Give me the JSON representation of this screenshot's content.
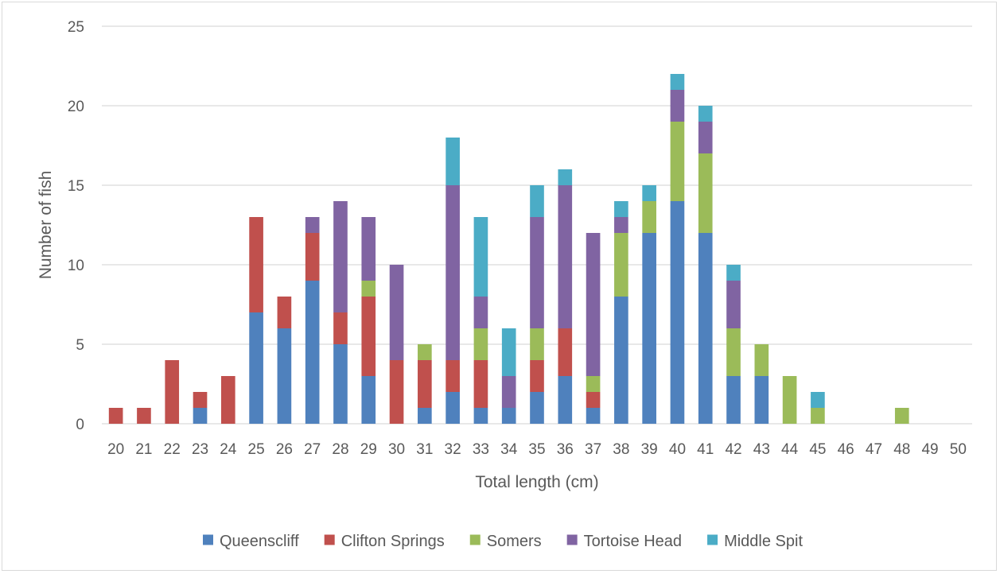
{
  "chart_data": {
    "type": "bar",
    "stacked": true,
    "title": "",
    "xlabel": "Total length (cm)",
    "ylabel": "Number of fish",
    "ylim": [
      0,
      25
    ],
    "yticks": [
      0,
      5,
      10,
      15,
      20,
      25
    ],
    "grid": "horizontal",
    "legend_position": "bottom",
    "categories": [
      "20",
      "21",
      "22",
      "23",
      "24",
      "25",
      "26",
      "27",
      "28",
      "29",
      "30",
      "31",
      "32",
      "33",
      "34",
      "35",
      "36",
      "37",
      "38",
      "39",
      "40",
      "41",
      "42",
      "43",
      "44",
      "45",
      "46",
      "47",
      "48",
      "49",
      "50"
    ],
    "series": [
      {
        "name": "Queenscliff",
        "color": "#4f81bd",
        "values": [
          0,
          0,
          0,
          1,
          0,
          7,
          6,
          9,
          5,
          3,
          0,
          1,
          2,
          1,
          1,
          2,
          3,
          1,
          8,
          12,
          14,
          12,
          3,
          3,
          0,
          0,
          0,
          0,
          0,
          0,
          0
        ]
      },
      {
        "name": "Clifton Springs",
        "color": "#c0504d",
        "values": [
          1,
          1,
          4,
          1,
          3,
          6,
          2,
          3,
          2,
          5,
          4,
          3,
          2,
          3,
          0,
          2,
          3,
          1,
          0,
          0,
          0,
          0,
          0,
          0,
          0,
          0,
          0,
          0,
          0,
          0,
          0
        ]
      },
      {
        "name": "Somers",
        "color": "#9bbb59",
        "values": [
          0,
          0,
          0,
          0,
          0,
          0,
          0,
          0,
          0,
          1,
          0,
          1,
          0,
          2,
          0,
          2,
          0,
          1,
          4,
          2,
          5,
          5,
          3,
          2,
          3,
          1,
          0,
          0,
          1,
          0,
          0
        ]
      },
      {
        "name": "Tortoise Head",
        "color": "#8064a2",
        "values": [
          0,
          0,
          0,
          0,
          0,
          0,
          0,
          1,
          7,
          4,
          6,
          0,
          11,
          2,
          2,
          7,
          9,
          9,
          1,
          0,
          2,
          2,
          3,
          0,
          0,
          0,
          0,
          0,
          0,
          0,
          0
        ]
      },
      {
        "name": "Middle Spit",
        "color": "#4bacc6",
        "values": [
          0,
          0,
          0,
          0,
          0,
          0,
          0,
          0,
          0,
          0,
          0,
          0,
          3,
          5,
          3,
          2,
          1,
          0,
          1,
          1,
          1,
          1,
          1,
          0,
          0,
          1,
          0,
          0,
          0,
          0,
          0
        ]
      }
    ]
  }
}
